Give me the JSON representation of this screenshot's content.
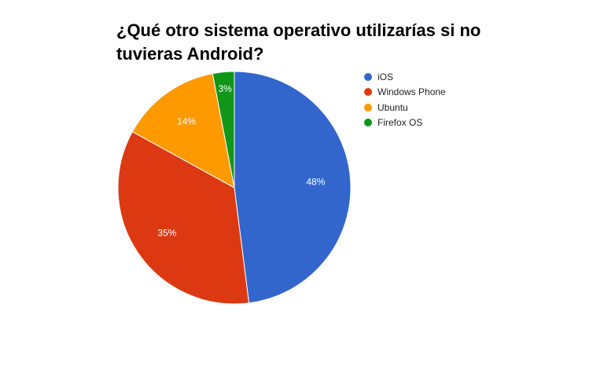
{
  "chart_data": {
    "type": "pie",
    "title": "¿Qué otro sistema operativo utilizarías si no tuvieras Android?",
    "legend_position": "right",
    "slices": [
      {
        "label": "iOS",
        "value": 48,
        "display": "48%",
        "color": "#3366cc"
      },
      {
        "label": "Windows Phone",
        "value": 35,
        "display": "35%",
        "color": "#dc3912"
      },
      {
        "label": "Ubuntu",
        "value": 14,
        "display": "14%",
        "color": "#ff9900"
      },
      {
        "label": "Firefox OS",
        "value": 3,
        "display": "3%",
        "color": "#109618"
      }
    ]
  }
}
